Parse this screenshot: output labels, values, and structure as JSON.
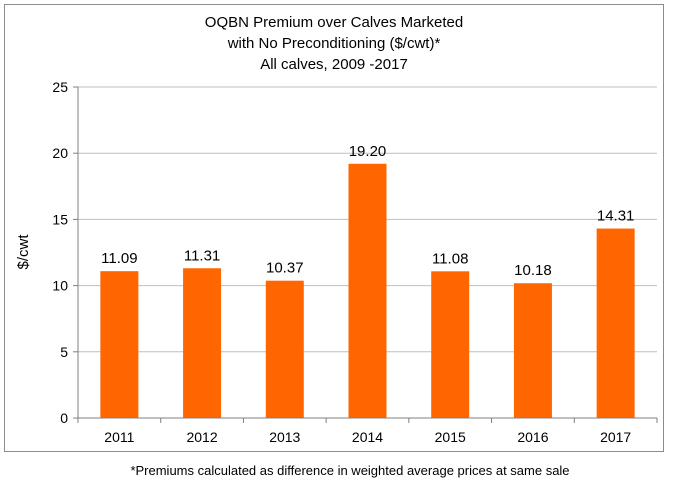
{
  "chart_data": {
    "type": "bar",
    "title_lines": [
      "OQBN Premium over Calves Marketed",
      "with No Preconditioning ($/cwt)*",
      "All calves, 2009 -2017"
    ],
    "ylabel": "$/cwt",
    "xlabel": "",
    "categories": [
      "2011",
      "2012",
      "2013",
      "2014",
      "2015",
      "2016",
      "2017"
    ],
    "values": [
      11.09,
      11.31,
      10.37,
      19.2,
      11.08,
      10.18,
      14.31
    ],
    "data_labels": [
      "11.09",
      "11.31",
      "10.37",
      "19.20",
      "11.08",
      "10.18",
      "14.31"
    ],
    "ylim": [
      0,
      25
    ],
    "yticks": [
      0,
      5,
      10,
      15,
      20,
      25
    ],
    "grid": true,
    "legend": "none",
    "bar_color": "#ff6600",
    "grid_color": "#bfbfbf"
  },
  "footnote": "*Premiums calculated as difference in weighted average prices at same sale"
}
